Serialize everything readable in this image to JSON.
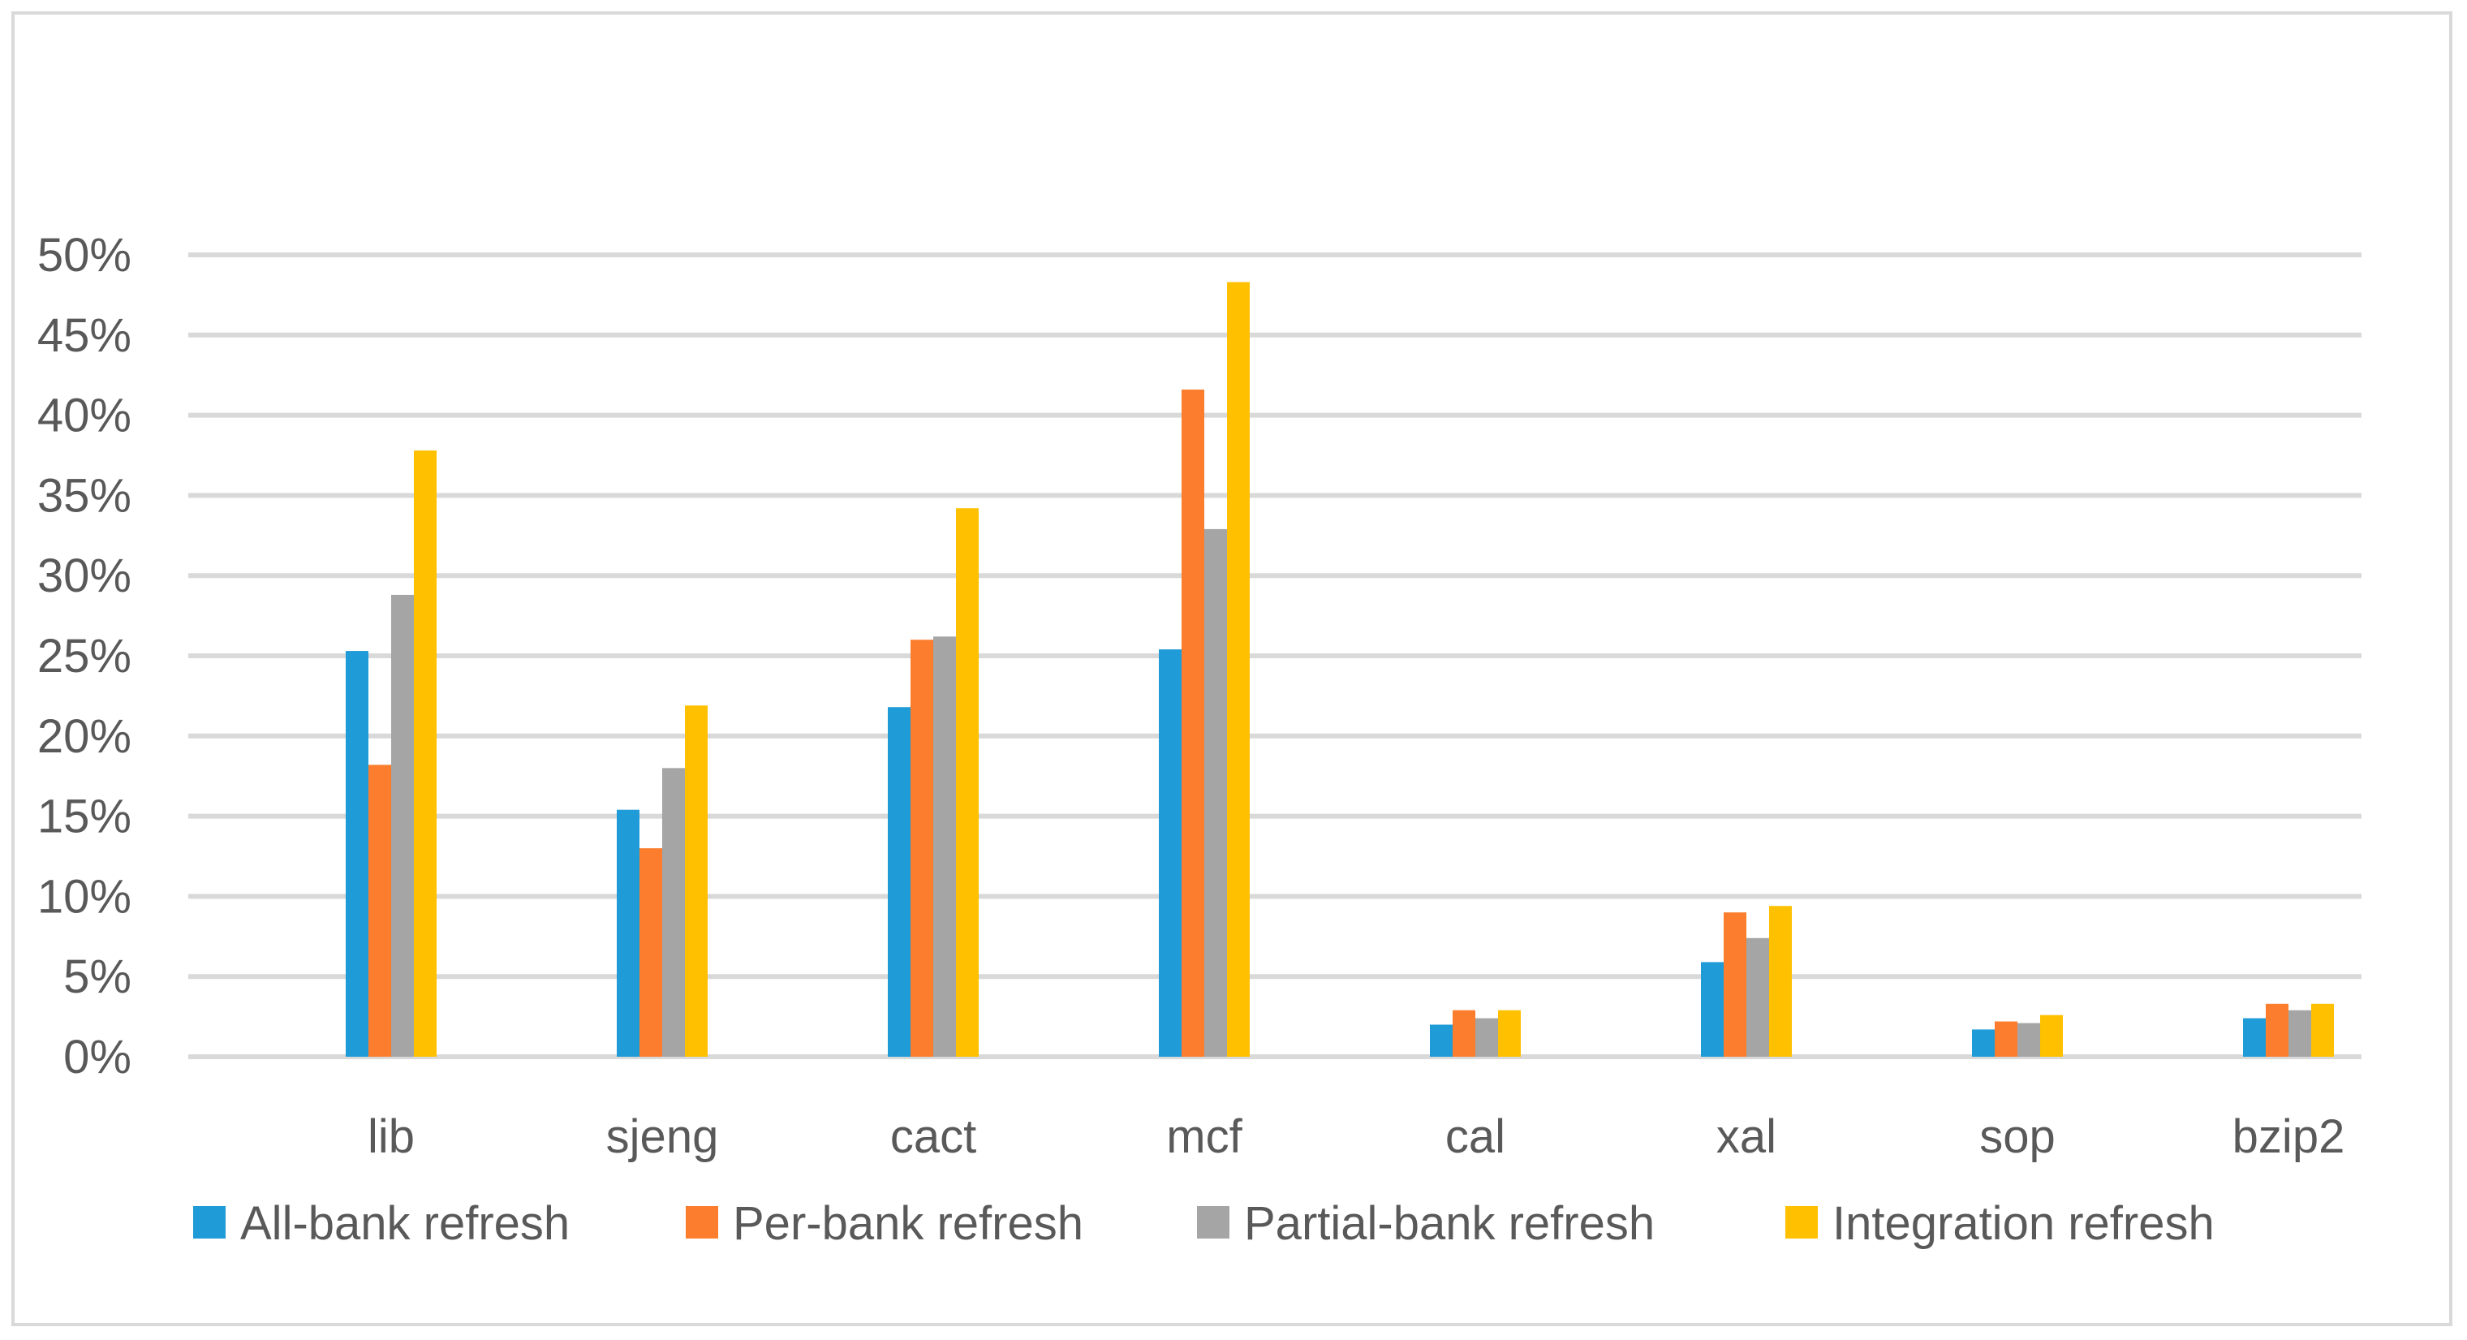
{
  "chart_data": {
    "type": "bar",
    "title": "",
    "xlabel": "",
    "ylabel": "",
    "categories": [
      "lib",
      "sjeng",
      "cact",
      "mcf",
      "cal",
      "xal",
      "sop",
      "bzip2"
    ],
    "series": [
      {
        "name": "All-bank refresh",
        "color": "#1f9bd7",
        "values": [
          25.3,
          15.4,
          21.8,
          25.4,
          2.0,
          5.9,
          1.7,
          2.4
        ]
      },
      {
        "name": "Per-bank refresh",
        "color": "#fb7d2d",
        "values": [
          18.2,
          13.0,
          26.0,
          41.6,
          2.9,
          9.0,
          2.2,
          3.3
        ]
      },
      {
        "name": "Partial-bank refresh",
        "color": "#a5a5a5",
        "values": [
          28.8,
          18.0,
          26.2,
          32.9,
          2.4,
          7.4,
          2.1,
          2.9
        ]
      },
      {
        "name": "Integration refresh",
        "color": "#ffc000",
        "values": [
          37.8,
          21.9,
          34.2,
          48.3,
          2.9,
          9.4,
          2.6,
          3.3
        ]
      }
    ],
    "y_ticks": [
      "0%",
      "5%",
      "10%",
      "15%",
      "20%",
      "25%",
      "30%",
      "35%",
      "40%",
      "45%",
      "50%"
    ],
    "y_tick_values": [
      0,
      5,
      10,
      15,
      20,
      25,
      30,
      35,
      40,
      45,
      50
    ],
    "ylim": [
      0,
      50
    ],
    "grid": true,
    "legend_position": "bottom",
    "grid_color": "#d9d9d9"
  }
}
